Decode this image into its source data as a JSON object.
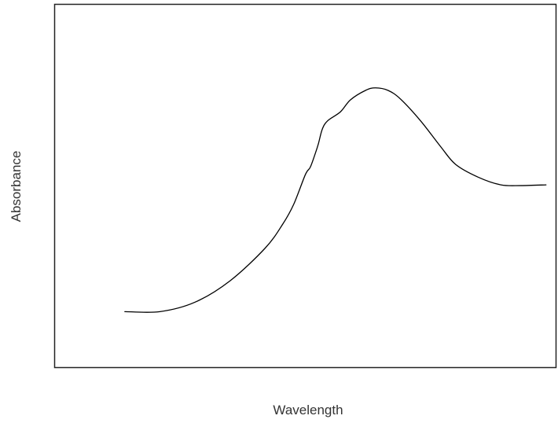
{
  "chart_data": {
    "type": "line",
    "title": "",
    "xlabel": "Wavelength",
    "ylabel": "Absorbance",
    "xlim": [
      0,
      100
    ],
    "ylim": [
      0,
      100
    ],
    "grid": false,
    "legend": "none",
    "ticks": false,
    "series": [
      {
        "color": "#000000",
        "points": [
          [
            14,
            15.4
          ],
          [
            21,
            15.4
          ],
          [
            28,
            18.0
          ],
          [
            35,
            23.9
          ],
          [
            42,
            32.9
          ],
          [
            45.5,
            39.5
          ],
          [
            47.7,
            45.0
          ],
          [
            50,
            53.1
          ],
          [
            51,
            55.2
          ],
          [
            52,
            59.0
          ],
          [
            52.6,
            61.6
          ],
          [
            53.4,
            65.7
          ],
          [
            54.5,
            68.0
          ],
          [
            57,
            70.4
          ],
          [
            59,
            73.7
          ],
          [
            62,
            76.3
          ],
          [
            64,
            77.0
          ],
          [
            66.5,
            76.3
          ],
          [
            69,
            73.9
          ],
          [
            73,
            67.9
          ],
          [
            77,
            60.8
          ],
          [
            80,
            55.9
          ],
          [
            84.5,
            52.4
          ],
          [
            89,
            50.3
          ],
          [
            93,
            50.1
          ],
          [
            98,
            50.3
          ]
        ]
      }
    ]
  }
}
